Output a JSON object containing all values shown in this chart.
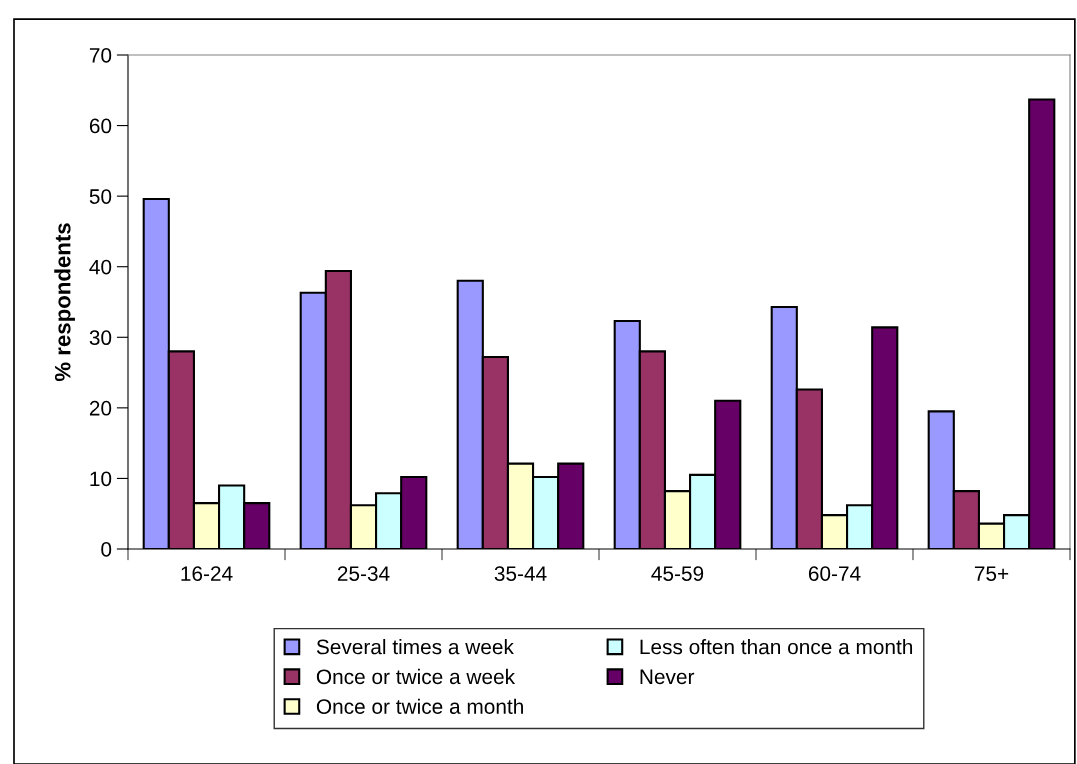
{
  "chart_data": {
    "type": "bar",
    "ylabel": "% respondents",
    "categories": [
      "16-24",
      "25-34",
      "35-44",
      "45-59",
      "60-74",
      "75+"
    ],
    "series": [
      {
        "name": "Several times a week",
        "color": "#9999ff",
        "values": [
          49.6,
          36.3,
          38,
          32.3,
          34.3,
          19.5
        ]
      },
      {
        "name": "Once or twice a week",
        "color": "#993366",
        "values": [
          28,
          39.4,
          27.2,
          28,
          22.6,
          8.2
        ]
      },
      {
        "name": "Once or twice a month",
        "color": "#ffffcc",
        "values": [
          6.5,
          6.2,
          12.1,
          8.2,
          4.8,
          3.6
        ]
      },
      {
        "name": "Less often than once a month",
        "color": "#ccffff",
        "values": [
          9,
          7.9,
          10.2,
          10.5,
          6.2,
          4.8
        ]
      },
      {
        "name": "Never",
        "color": "#660066",
        "values": [
          6.5,
          10.2,
          12.1,
          21,
          31.4,
          63.7
        ]
      }
    ],
    "ylim": [
      0,
      70
    ],
    "yticks": [
      0,
      10,
      20,
      30,
      40,
      50,
      60,
      70
    ],
    "grid": false,
    "legend": "bottom"
  }
}
